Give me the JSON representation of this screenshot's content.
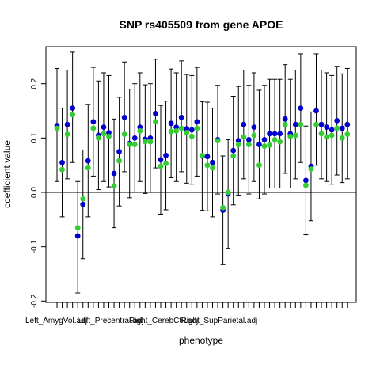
{
  "chart_data": {
    "type": "scatter",
    "title": "SNP rs405509 from gene APOE",
    "xlabel": "phenotype",
    "ylabel": "coefficient value",
    "ylim": [
      -0.2,
      0.25
    ],
    "yticks": [
      -0.2,
      -0.1,
      0.0,
      0.1,
      0.2
    ],
    "reference_line_y": 0,
    "x_tick_labels": [
      "Left_AmygVol.adj",
      "Left_Precentral.adj",
      "Right_CerebCtx.adj",
      "Right_SupParietal.adj"
    ],
    "x_label_positions": [
      1,
      11,
      21,
      31
    ],
    "colors": {
      "blue": "#0000cc",
      "green": "#33cc33",
      "errorbar": "#000000"
    },
    "series": [
      {
        "name": "blue",
        "values": [
          0.123,
          0.055,
          0.125,
          0.155,
          -0.08,
          -0.022,
          0.058,
          0.13,
          0.105,
          0.12,
          0.11,
          0.035,
          0.075,
          0.138,
          0.09,
          0.1,
          0.12,
          0.098,
          0.1,
          0.145,
          0.06,
          0.068,
          0.127,
          0.12,
          0.138,
          0.117,
          0.115,
          0.13,
          0.067,
          0.066,
          0.055,
          0.097,
          -0.033,
          -0.003,
          0.077,
          0.095,
          0.125,
          0.097,
          0.12,
          0.088,
          0.097,
          0.108,
          0.108,
          0.108,
          0.135,
          0.108,
          0.125,
          0.155,
          0.022,
          0.048,
          0.15,
          0.125,
          0.12,
          0.115,
          0.132,
          0.118,
          0.125
        ],
        "lower": [
          0.02,
          -0.045,
          0.025,
          0.055,
          -0.185,
          -0.122,
          -0.045,
          0.03,
          0.005,
          0.02,
          0.01,
          -0.065,
          -0.025,
          0.038,
          -0.01,
          0.0,
          0.02,
          -0.002,
          0.0,
          0.045,
          -0.04,
          -0.032,
          0.027,
          0.02,
          0.038,
          0.017,
          0.015,
          0.03,
          -0.033,
          -0.034,
          -0.045,
          -0.003,
          -0.133,
          -0.103,
          -0.023,
          -0.005,
          0.025,
          -0.003,
          0.02,
          -0.012,
          -0.003,
          0.008,
          0.008,
          0.008,
          0.035,
          0.008,
          0.025,
          0.055,
          -0.078,
          -0.052,
          0.05,
          0.025,
          0.02,
          0.015,
          0.032,
          0.018,
          0.025
        ],
        "upper": [
          0.228,
          0.155,
          0.225,
          0.258,
          0.02,
          0.078,
          0.162,
          0.23,
          0.205,
          0.22,
          0.215,
          0.135,
          0.175,
          0.24,
          0.19,
          0.2,
          0.22,
          0.198,
          0.2,
          0.245,
          0.16,
          0.168,
          0.227,
          0.22,
          0.242,
          0.217,
          0.215,
          0.23,
          0.167,
          0.166,
          0.155,
          0.197,
          0.067,
          0.097,
          0.177,
          0.195,
          0.225,
          0.197,
          0.22,
          0.188,
          0.197,
          0.208,
          0.208,
          0.208,
          0.235,
          0.208,
          0.225,
          0.255,
          0.122,
          0.148,
          0.255,
          0.225,
          0.22,
          0.215,
          0.232,
          0.218,
          0.228
        ]
      },
      {
        "name": "green",
        "values": [
          0.118,
          0.042,
          0.107,
          0.143,
          -0.065,
          -0.012,
          0.045,
          0.118,
          0.1,
          0.108,
          0.103,
          0.012,
          0.058,
          0.107,
          0.088,
          0.088,
          0.113,
          0.093,
          0.093,
          0.13,
          0.048,
          0.053,
          0.112,
          0.113,
          0.118,
          0.11,
          0.103,
          0.118,
          0.068,
          0.05,
          0.045,
          0.095,
          -0.028,
          0.0,
          0.067,
          0.088,
          0.102,
          0.088,
          0.105,
          0.05,
          0.085,
          0.087,
          0.097,
          0.093,
          0.125,
          0.103,
          0.105,
          0.125,
          0.013,
          0.043,
          0.125,
          0.108,
          0.102,
          0.105,
          0.118,
          0.1,
          0.107
        ]
      }
    ]
  }
}
